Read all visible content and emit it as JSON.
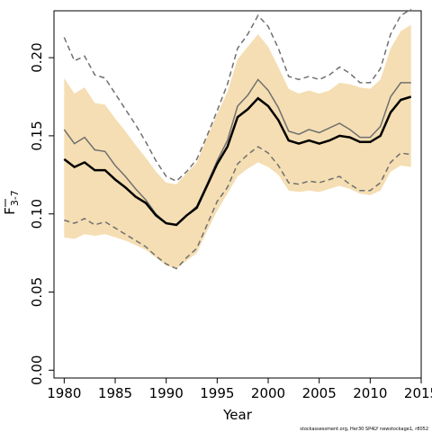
{
  "chart_data": {
    "type": "line",
    "xlabel": "Year",
    "ylabel_main": "F",
    "ylabel_sub": "3-7",
    "xlim": [
      1979,
      2015
    ],
    "ylim": [
      -0.005,
      0.23
    ],
    "x_ticks": [
      1980,
      1985,
      1990,
      1995,
      2000,
      2005,
      2010,
      2015
    ],
    "x_tick_labels": [
      "1980",
      "1985",
      "1990",
      "1995",
      "2000",
      "2005",
      "2010",
      "2015"
    ],
    "y_ticks": [
      0.0,
      0.05,
      0.1,
      0.15,
      0.2
    ],
    "y_tick_labels": [
      "0.00",
      "0.05",
      "0.10",
      "0.15",
      "0.20"
    ],
    "grid": false,
    "footer": "stockassessment.org, Her30 SP4LY  newstockage1, r8052",
    "colors": {
      "band": "#f5deb3",
      "main_line": "#000000",
      "secondary_line": "#707070",
      "dashed_line": "#707070"
    },
    "x": [
      1980,
      1981,
      1982,
      1983,
      1984,
      1985,
      1986,
      1987,
      1988,
      1989,
      1990,
      1991,
      1992,
      1993,
      1994,
      1995,
      1996,
      1997,
      1998,
      1999,
      2000,
      2001,
      2002,
      2003,
      2004,
      2005,
      2006,
      2007,
      2008,
      2009,
      2010,
      2011,
      2012,
      2013,
      2014
    ],
    "series": [
      {
        "role": "band_upper",
        "values": [
          0.187,
          0.177,
          0.181,
          0.171,
          0.17,
          0.161,
          0.153,
          0.144,
          0.136,
          0.127,
          0.12,
          0.119,
          0.126,
          0.133,
          0.149,
          0.164,
          0.178,
          0.199,
          0.207,
          0.215,
          0.207,
          0.194,
          0.18,
          0.177,
          0.179,
          0.177,
          0.179,
          0.184,
          0.183,
          0.181,
          0.18,
          0.186,
          0.206,
          0.217,
          0.221
        ]
      },
      {
        "role": "band_lower",
        "values": [
          0.085,
          0.084,
          0.087,
          0.086,
          0.087,
          0.085,
          0.083,
          0.08,
          0.077,
          0.072,
          0.067,
          0.065,
          0.07,
          0.075,
          0.089,
          0.102,
          0.113,
          0.124,
          0.129,
          0.133,
          0.13,
          0.125,
          0.115,
          0.114,
          0.115,
          0.114,
          0.116,
          0.118,
          0.116,
          0.113,
          0.112,
          0.115,
          0.127,
          0.131,
          0.13
        ]
      },
      {
        "role": "upper_dashed",
        "values": [
          0.213,
          0.198,
          0.201,
          0.189,
          0.187,
          0.177,
          0.167,
          0.157,
          0.146,
          0.134,
          0.124,
          0.121,
          0.127,
          0.135,
          0.15,
          0.166,
          0.183,
          0.206,
          0.215,
          0.227,
          0.22,
          0.206,
          0.188,
          0.186,
          0.188,
          0.186,
          0.189,
          0.194,
          0.19,
          0.184,
          0.184,
          0.193,
          0.215,
          0.227,
          0.231
        ]
      },
      {
        "role": "lower_dashed",
        "values": [
          0.096,
          0.094,
          0.097,
          0.093,
          0.095,
          0.091,
          0.087,
          0.083,
          0.079,
          0.073,
          0.068,
          0.065,
          0.072,
          0.078,
          0.093,
          0.108,
          0.117,
          0.132,
          0.138,
          0.143,
          0.139,
          0.131,
          0.12,
          0.119,
          0.121,
          0.12,
          0.122,
          0.124,
          0.119,
          0.115,
          0.115,
          0.12,
          0.133,
          0.139,
          0.138
        ]
      },
      {
        "role": "grey_solid",
        "values": [
          0.154,
          0.145,
          0.149,
          0.141,
          0.14,
          0.131,
          0.124,
          0.116,
          0.109,
          0.1,
          0.094,
          0.093,
          0.099,
          0.105,
          0.119,
          0.134,
          0.147,
          0.169,
          0.176,
          0.186,
          0.179,
          0.168,
          0.153,
          0.151,
          0.154,
          0.152,
          0.155,
          0.158,
          0.154,
          0.149,
          0.149,
          0.156,
          0.175,
          0.184,
          0.184
        ]
      },
      {
        "role": "main_line",
        "values": [
          0.135,
          0.13,
          0.133,
          0.128,
          0.128,
          0.122,
          0.117,
          0.111,
          0.107,
          0.099,
          0.094,
          0.093,
          0.099,
          0.104,
          0.118,
          0.132,
          0.143,
          0.162,
          0.167,
          0.174,
          0.169,
          0.16,
          0.147,
          0.145,
          0.147,
          0.145,
          0.147,
          0.15,
          0.149,
          0.146,
          0.146,
          0.15,
          0.165,
          0.173,
          0.175
        ]
      }
    ]
  }
}
